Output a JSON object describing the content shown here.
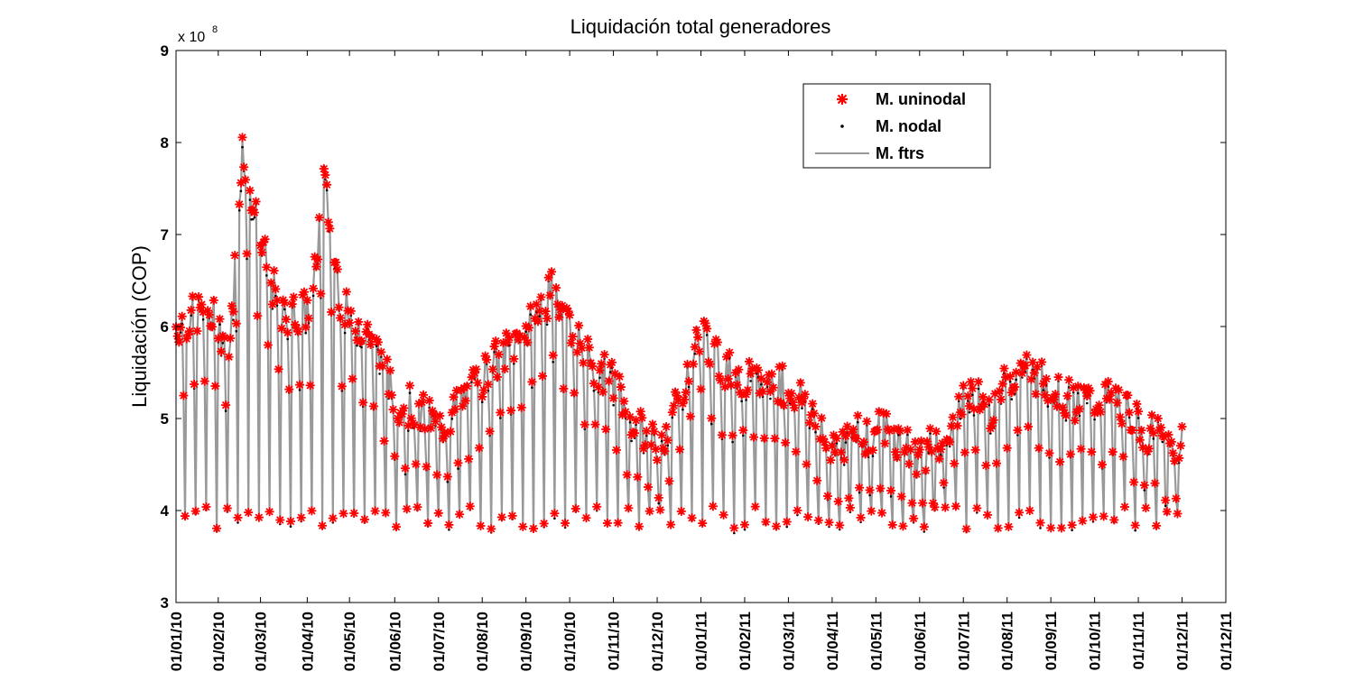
{
  "chart_data": {
    "type": "line",
    "title": "Liquidación total generadores",
    "xlabel": "",
    "ylabel": "Liquidación (COP)",
    "y_multiplier_label": "x 10",
    "y_multiplier_exponent": "8",
    "ylim": [
      300000000,
      900000000
    ],
    "yticks": [
      {
        "value": 300000000,
        "label": "3"
      },
      {
        "value": 400000000,
        "label": "4"
      },
      {
        "value": 500000000,
        "label": "5"
      },
      {
        "value": 600000000,
        "label": "6"
      },
      {
        "value": 700000000,
        "label": "7"
      },
      {
        "value": 800000000,
        "label": "8"
      },
      {
        "value": 900000000,
        "label": "9"
      }
    ],
    "xlim": [
      0,
      696
    ],
    "xticks": [
      {
        "value": 0,
        "label": "01/01/10"
      },
      {
        "value": 28,
        "label": "01/02/10"
      },
      {
        "value": 56,
        "label": "01/03/10"
      },
      {
        "value": 87,
        "label": "01/04/10"
      },
      {
        "value": 115,
        "label": "01/05/10"
      },
      {
        "value": 145,
        "label": "01/06/10"
      },
      {
        "value": 174,
        "label": "01/07/10"
      },
      {
        "value": 203,
        "label": "01/08/10"
      },
      {
        "value": 232,
        "label": "01/09/10"
      },
      {
        "value": 261,
        "label": "01/10/10"
      },
      {
        "value": 290,
        "label": "01/11/10"
      },
      {
        "value": 319,
        "label": "01/12/10"
      },
      {
        "value": 348,
        "label": "01/01/11"
      },
      {
        "value": 377,
        "label": "01/02/11"
      },
      {
        "value": 406,
        "label": "01/03/11"
      },
      {
        "value": 435,
        "label": "01/04/11"
      },
      {
        "value": 464,
        "label": "01/05/11"
      },
      {
        "value": 493,
        "label": "01/06/11"
      },
      {
        "value": 522,
        "label": "01/07/11"
      },
      {
        "value": 551,
        "label": "01/08/11"
      },
      {
        "value": 580,
        "label": "01/09/11"
      },
      {
        "value": 609,
        "label": "01/10/11"
      },
      {
        "value": 638,
        "label": "01/11/11"
      },
      {
        "value": 667,
        "label": "01/12/11"
      },
      {
        "value": 696,
        "label": "01/12/11"
      }
    ],
    "grid": false,
    "legend_position": "top-right",
    "series": [
      {
        "name": "M. uninodal",
        "marker": "asterisk",
        "color": "#ff0000",
        "values": []
      },
      {
        "name": "M. nodal",
        "marker": "dot",
        "color": "#000000",
        "values": []
      },
      {
        "name": "M. ftrs",
        "marker": "line",
        "color": "#999999",
        "values": []
      }
    ],
    "x": []
  }
}
